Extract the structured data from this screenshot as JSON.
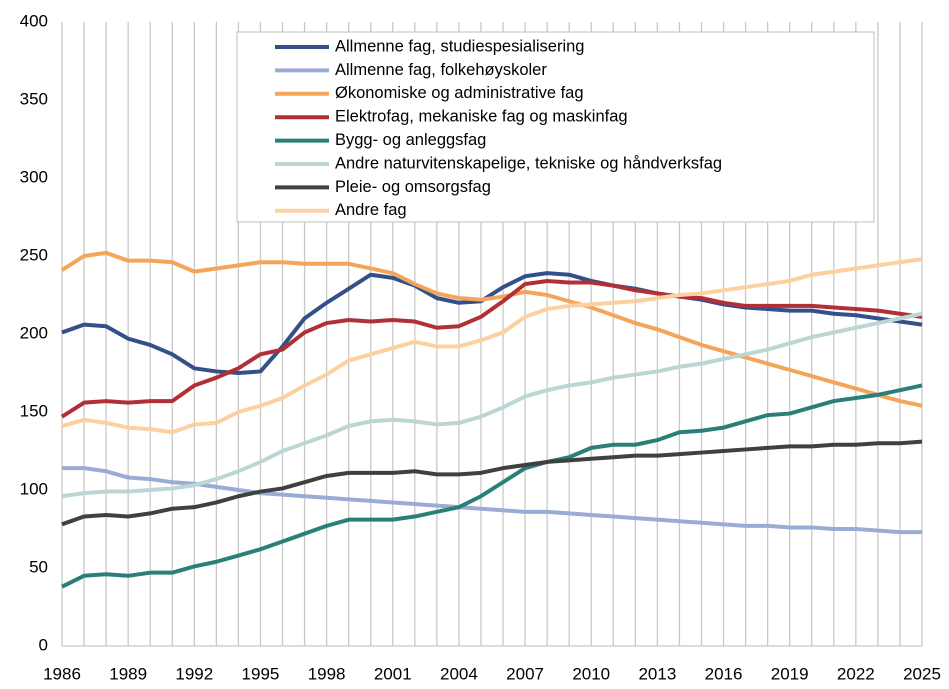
{
  "chart_data": {
    "type": "line",
    "x": [
      1986,
      1987,
      1988,
      1989,
      1990,
      1991,
      1992,
      1993,
      1994,
      1995,
      1996,
      1997,
      1998,
      1999,
      2000,
      2001,
      2002,
      2003,
      2004,
      2005,
      2006,
      2007,
      2008,
      2009,
      2010,
      2011,
      2012,
      2013,
      2014,
      2015,
      2016,
      2017,
      2018,
      2019,
      2020,
      2021,
      2022,
      2023,
      2024,
      2025
    ],
    "xlim": [
      1986,
      2025
    ],
    "xticks": [
      1986,
      1989,
      1992,
      1995,
      1998,
      2001,
      2004,
      2007,
      2010,
      2013,
      2016,
      2019,
      2022,
      2025
    ],
    "ylim": [
      0,
      400
    ],
    "yticks": [
      0,
      50,
      100,
      150,
      200,
      250,
      300,
      350,
      400
    ],
    "grid": "x",
    "legend": "upper center",
    "series": [
      {
        "name": "Allmenne fag, studiespesialisering",
        "color": "#34508a",
        "values": [
          201,
          206,
          205,
          197,
          193,
          187,
          178,
          176,
          175,
          176,
          192,
          210,
          220,
          229,
          238,
          236,
          231,
          223,
          220,
          221,
          230,
          237,
          239,
          238,
          234,
          231,
          229,
          226,
          224,
          222,
          219,
          217,
          216,
          215,
          215,
          213,
          212,
          210,
          208,
          206
        ]
      },
      {
        "name": "Allmenne fag, folkehøyskoler",
        "color": "#9aabd4",
        "values": [
          114,
          114,
          112,
          108,
          107,
          105,
          104,
          102,
          100,
          98,
          97,
          96,
          95,
          94,
          93,
          92,
          91,
          90,
          89,
          88,
          87,
          86,
          86,
          85,
          84,
          83,
          82,
          81,
          80,
          79,
          78,
          77,
          77,
          76,
          76,
          75,
          75,
          74,
          73,
          73
        ]
      },
      {
        "name": "Økonomiske og administrative fag",
        "color": "#f4a55a",
        "values": [
          241,
          250,
          252,
          247,
          247,
          246,
          240,
          242,
          244,
          246,
          246,
          245,
          245,
          245,
          242,
          239,
          232,
          226,
          223,
          222,
          224,
          227,
          225,
          221,
          217,
          212,
          207,
          203,
          198,
          193,
          189,
          185,
          181,
          177,
          173,
          169,
          165,
          161,
          157,
          154
        ]
      },
      {
        "name": "Elektrofag, mekaniske fag og maskinfag",
        "color": "#b03035",
        "values": [
          147,
          156,
          157,
          156,
          157,
          157,
          167,
          172,
          178,
          187,
          190,
          201,
          207,
          209,
          208,
          209,
          208,
          204,
          205,
          211,
          221,
          232,
          234,
          233,
          233,
          231,
          228,
          226,
          224,
          223,
          220,
          218,
          218,
          218,
          218,
          217,
          216,
          215,
          213,
          211
        ]
      },
      {
        "name": "Bygg- og anleggsfag",
        "color": "#2a8078",
        "values": [
          38,
          45,
          46,
          45,
          47,
          47,
          51,
          54,
          58,
          62,
          67,
          72,
          77,
          81,
          81,
          81,
          83,
          86,
          89,
          96,
          105,
          114,
          118,
          121,
          127,
          129,
          129,
          132,
          137,
          138,
          140,
          144,
          148,
          149,
          153,
          157,
          159,
          161,
          164,
          167
        ]
      },
      {
        "name": "Andre naturvitenskapelige, tekniske og håndverksfag",
        "color": "#bcd6d6",
        "values": [
          96,
          98,
          99,
          99,
          100,
          101,
          103,
          107,
          112,
          118,
          125,
          130,
          135,
          141,
          144,
          145,
          144,
          142,
          143,
          147,
          153,
          160,
          164,
          167,
          169,
          172,
          174,
          176,
          179,
          181,
          184,
          187,
          190,
          194,
          198,
          201,
          204,
          207,
          210,
          213
        ]
      },
      {
        "name": "Pleie- og omsorgsfag",
        "color": "#404040",
        "values": [
          78,
          83,
          84,
          83,
          85,
          88,
          89,
          92,
          96,
          99,
          101,
          105,
          109,
          111,
          111,
          111,
          112,
          110,
          110,
          111,
          114,
          116,
          118,
          119,
          120,
          121,
          122,
          122,
          123,
          124,
          125,
          126,
          127,
          128,
          128,
          129,
          129,
          130,
          130,
          131
        ]
      },
      {
        "name": "Andre fag",
        "color": "#fcd0a0",
        "values": [
          141,
          145,
          143,
          140,
          139,
          137,
          142,
          143,
          150,
          154,
          159,
          167,
          174,
          183,
          187,
          191,
          195,
          192,
          192,
          196,
          201,
          211,
          216,
          218,
          219,
          220,
          221,
          223,
          225,
          226,
          228,
          230,
          232,
          234,
          238,
          240,
          242,
          244,
          246,
          248
        ]
      }
    ]
  }
}
